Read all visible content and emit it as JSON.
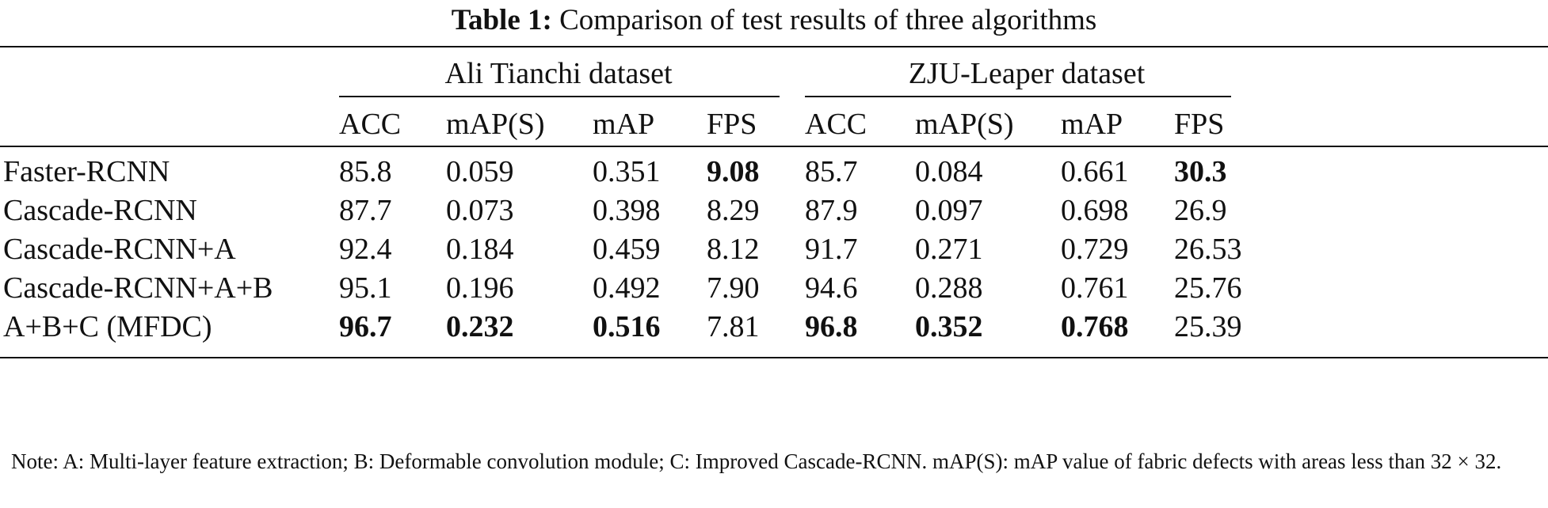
{
  "caption": {
    "label": "Table 1:",
    "text": "Comparison of test results of three algorithms"
  },
  "groups": [
    "Ali Tianchi dataset",
    "ZJU-Leaper dataset"
  ],
  "columns": [
    "ACC",
    "mAP(S)",
    "mAP",
    "FPS",
    "ACC",
    "mAP(S)",
    "mAP",
    "FPS"
  ],
  "rows": [
    {
      "name": "Faster-RCNN",
      "values": [
        "85.8",
        "0.059",
        "0.351",
        "9.08",
        "85.7",
        "0.084",
        "0.661",
        "30.3"
      ],
      "bold": [
        false,
        false,
        false,
        true,
        false,
        false,
        false,
        true
      ]
    },
    {
      "name": "Cascade-RCNN",
      "values": [
        "87.7",
        "0.073",
        "0.398",
        "8.29",
        "87.9",
        "0.097",
        "0.698",
        "26.9"
      ],
      "bold": [
        false,
        false,
        false,
        false,
        false,
        false,
        false,
        false
      ]
    },
    {
      "name": "Cascade-RCNN+A",
      "values": [
        "92.4",
        "0.184",
        "0.459",
        "8.12",
        "91.7",
        "0.271",
        "0.729",
        "26.53"
      ],
      "bold": [
        false,
        false,
        false,
        false,
        false,
        false,
        false,
        false
      ]
    },
    {
      "name": "Cascade-RCNN+A+B",
      "values": [
        "95.1",
        "0.196",
        "0.492",
        "7.90",
        "94.6",
        "0.288",
        "0.761",
        "25.76"
      ],
      "bold": [
        false,
        false,
        false,
        false,
        false,
        false,
        false,
        false
      ]
    },
    {
      "name": "A+B+C (MFDC)",
      "values": [
        "96.7",
        "0.232",
        "0.516",
        "7.81",
        "96.8",
        "0.352",
        "0.768",
        "25.39"
      ],
      "bold": [
        true,
        true,
        true,
        false,
        true,
        true,
        true,
        false
      ]
    }
  ],
  "note": "Note: A: Multi-layer feature extraction; B: Deformable convolution module; C: Improved Cascade-RCNN. mAP(S): mAP value of fabric defects with areas less than 32 × 32."
}
